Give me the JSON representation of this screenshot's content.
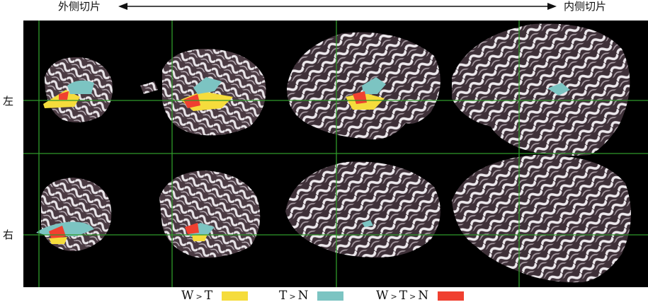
{
  "axis": {
    "lateral_label": "外侧切片",
    "medial_label": "内侧切片"
  },
  "rows": {
    "left_label": "左",
    "right_label": "右"
  },
  "legend": [
    {
      "a": "W",
      "op": ">",
      "b": "T",
      "c": "",
      "color": "#f5dc3c"
    },
    {
      "a": "T",
      "op": ">",
      "b": "N",
      "c": "",
      "color": "#7cc4c2"
    },
    {
      "a": "W",
      "op": ">",
      "b": "T",
      "c": "N",
      "color": "#f04030"
    }
  ],
  "colors": {
    "background": "#000000",
    "grid": "#2f9a2a",
    "cortex_light": "#e8e4e8",
    "cortex_dark": "#4a3a42",
    "wt": "#f5dc3c",
    "tn": "#7cc4c2",
    "wtn": "#f04030"
  }
}
